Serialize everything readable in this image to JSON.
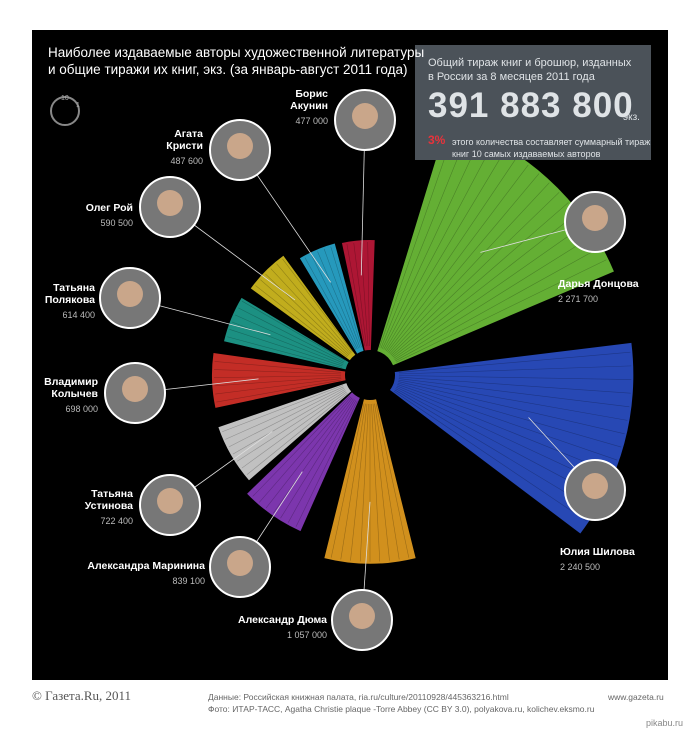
{
  "chart_data": {
    "type": "polar-bar",
    "title": "Наиболее издаваемые авторы художественной литературы\nи общие тиражи их книг, экз. (за январь-август 2011 года)",
    "categories": [
      "Борис\nАкунин",
      "Дарья Донцова",
      "Юлия Шилова",
      "Александр Дюма",
      "Александра Маринина",
      "Татьяна\nУстинова",
      "Владимир\nКолычев",
      "Татьяна\nПолякова",
      "Олег Рой",
      "Агата\nКристи"
    ],
    "values": [
      477000,
      2271700,
      2240500,
      1057000,
      839100,
      722400,
      698000,
      614400,
      590500,
      487600
    ],
    "value_labels": [
      "477 000",
      "2 271 700",
      "2 240 500",
      "1 057 000",
      "839 100",
      "722 400",
      "698 000",
      "614 400",
      "590 500",
      "487 600"
    ],
    "colors": [
      "#c0183a",
      "#6fc23a",
      "#2b50c8",
      "#e8a020",
      "#8a3cc0",
      "#d6d6d6",
      "#d8322a",
      "#1fa090",
      "#d6c020",
      "#2aaad0"
    ]
  },
  "icon_labels": [
    "10",
    "1"
  ],
  "info_box": {
    "text": "Общий тираж книг и брошюр, изданных\nв России за 8 месяцев 2011 года",
    "total": "391 883 800",
    "unit": "экз.",
    "share": "3%",
    "share_text": "этого количества составляет суммарный тираж\nкниг 10 самых издаваемых авторов"
  },
  "footer": {
    "copyright": "© Газета.Ru, 2011",
    "source": "Данные: Российская книжная палата, ria.ru/culture/20110928/445363216.html",
    "photo": "Фото: ИТАР-ТАСС, Agatha Christie plaque -Torre Abbey (CC BY 3.0), polyakova.ru, kolichev.eksmo.ru",
    "site": "www.gazeta.ru"
  },
  "watermark": "pikabu.ru"
}
